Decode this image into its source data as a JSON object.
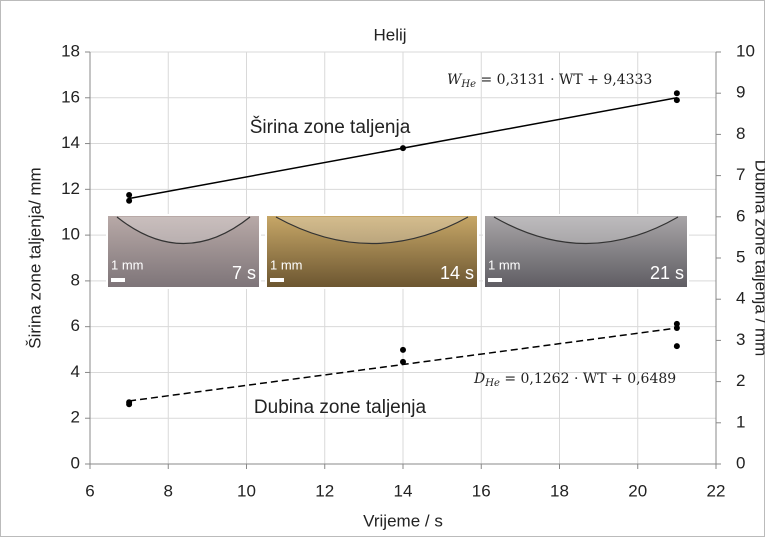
{
  "chart_data": {
    "type": "scatter",
    "title": "Helij",
    "x_label": "Vrijeme / s",
    "y_label": "Širina zone taljenja/ mm",
    "y2_label": "Dubina zone taljenja / mm",
    "xlim": [
      6,
      22
    ],
    "xticks": [
      6,
      8,
      10,
      12,
      14,
      16,
      18,
      20,
      22
    ],
    "ylim": [
      0,
      18
    ],
    "yticks": [
      0,
      2,
      4,
      6,
      8,
      10,
      12,
      14,
      16,
      18
    ],
    "y2lim": [
      0,
      10
    ],
    "y2ticks": [
      0,
      1,
      2,
      3,
      4,
      5,
      6,
      7,
      8,
      9,
      10
    ],
    "grid": true,
    "series": [
      {
        "color": "#000000",
        "x": [
          7,
          7,
          14,
          21,
          21
        ],
        "values": [
          11.75,
          11.5,
          13.8,
          16.2,
          15.9
        ],
        "trend": {
          "x": [
            7,
            21
          ],
          "values": [
            11.6,
            16.0
          ],
          "dash": false
        },
        "label": "Širina zone taljenja",
        "equation": {
          "symbol": "W",
          "subscript": "He",
          "rhs": " = 0,3131 · WT + 9,4333"
        }
      },
      {
        "color": "#000000",
        "axis": "y2",
        "x": [
          7,
          7,
          14,
          14,
          21,
          21,
          21
        ],
        "values": [
          1.45,
          1.5,
          2.77,
          2.48,
          3.4,
          3.3,
          2.86
        ],
        "trend": {
          "x": [
            7,
            21
          ],
          "values": [
            1.53,
            3.3
          ],
          "dash": true
        },
        "label": "Dubina zone taljenja",
        "equation": {
          "symbol": "D",
          "subscript": "He",
          "rhs": " = 0,1262 · WT + 0,6489"
        }
      }
    ],
    "micrographs": [
      {
        "scale": "1 mm",
        "time": "7 s"
      },
      {
        "scale": "1 mm",
        "time": "14 s"
      },
      {
        "scale": "1 mm",
        "time": "21 s"
      }
    ]
  }
}
